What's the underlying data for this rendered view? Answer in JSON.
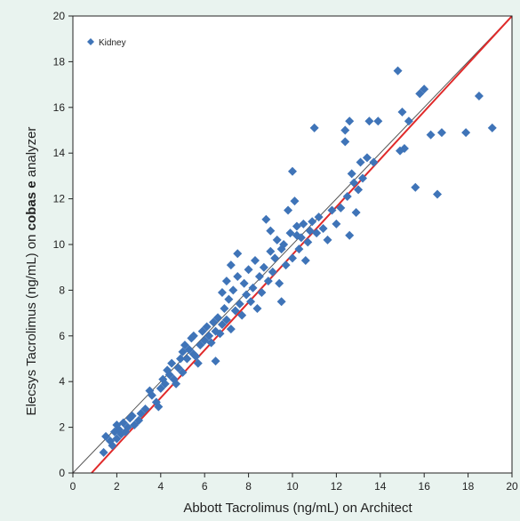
{
  "chart_data": {
    "type": "scatter",
    "xlabel": "Abbott Tacrolimus (ng/mL) on Architect",
    "ylabel_parts": [
      "Elecsys Tacrolimus (ng/mL) on ",
      "cobas e",
      " analyzer"
    ],
    "xlim": [
      0,
      20
    ],
    "ylim": [
      0,
      20
    ],
    "xticks": [
      0,
      2,
      4,
      6,
      8,
      10,
      12,
      14,
      16,
      18,
      20
    ],
    "yticks": [
      0,
      2,
      4,
      6,
      8,
      10,
      12,
      14,
      16,
      18,
      20
    ],
    "grid": false,
    "legend_position": "top-left",
    "colors": {
      "points": "#3f74b8",
      "regression_line": "#e02a2a",
      "identity_line": "#555555",
      "plot_background": "#ffffff"
    },
    "series": [
      {
        "name": "Kidney",
        "marker": "diamond",
        "points": [
          [
            1.4,
            0.9
          ],
          [
            1.5,
            1.6
          ],
          [
            1.7,
            1.4
          ],
          [
            1.8,
            1.2
          ],
          [
            1.9,
            1.8
          ],
          [
            2.0,
            1.5
          ],
          [
            2.0,
            2.1
          ],
          [
            2.1,
            1.9
          ],
          [
            2.2,
            1.7
          ],
          [
            2.3,
            2.2
          ],
          [
            2.4,
            1.8
          ],
          [
            2.5,
            2.0
          ],
          [
            2.6,
            2.4
          ],
          [
            2.7,
            2.5
          ],
          [
            2.8,
            2.1
          ],
          [
            3.0,
            2.3
          ],
          [
            3.1,
            2.6
          ],
          [
            3.3,
            2.8
          ],
          [
            3.5,
            3.6
          ],
          [
            3.6,
            3.4
          ],
          [
            3.8,
            3.1
          ],
          [
            3.9,
            2.9
          ],
          [
            4.0,
            3.7
          ],
          [
            4.1,
            4.1
          ],
          [
            4.2,
            3.9
          ],
          [
            4.3,
            4.5
          ],
          [
            4.4,
            4.3
          ],
          [
            4.5,
            4.8
          ],
          [
            4.6,
            4.1
          ],
          [
            4.7,
            3.9
          ],
          [
            4.8,
            4.6
          ],
          [
            4.9,
            5.0
          ],
          [
            5.0,
            4.4
          ],
          [
            5.0,
            5.3
          ],
          [
            5.1,
            5.6
          ],
          [
            5.2,
            5.0
          ],
          [
            5.3,
            5.4
          ],
          [
            5.4,
            5.9
          ],
          [
            5.5,
            5.2
          ],
          [
            5.5,
            6.0
          ],
          [
            5.6,
            5.1
          ],
          [
            5.7,
            4.8
          ],
          [
            5.8,
            5.6
          ],
          [
            5.9,
            6.2
          ],
          [
            6.0,
            5.8
          ],
          [
            6.1,
            6.4
          ],
          [
            6.2,
            6.0
          ],
          [
            6.3,
            5.7
          ],
          [
            6.4,
            6.6
          ],
          [
            6.5,
            4.9
          ],
          [
            6.5,
            6.2
          ],
          [
            6.6,
            6.8
          ],
          [
            6.7,
            6.1
          ],
          [
            6.8,
            6.5
          ],
          [
            6.8,
            7.9
          ],
          [
            6.9,
            7.2
          ],
          [
            7.0,
            6.7
          ],
          [
            7.0,
            8.4
          ],
          [
            7.1,
            7.6
          ],
          [
            7.2,
            6.3
          ],
          [
            7.2,
            9.1
          ],
          [
            7.3,
            8.0
          ],
          [
            7.4,
            7.1
          ],
          [
            7.5,
            8.6
          ],
          [
            7.5,
            9.6
          ],
          [
            7.6,
            7.4
          ],
          [
            7.7,
            6.9
          ],
          [
            7.8,
            8.3
          ],
          [
            7.9,
            7.8
          ],
          [
            8.0,
            8.9
          ],
          [
            8.1,
            7.5
          ],
          [
            8.2,
            8.1
          ],
          [
            8.3,
            9.3
          ],
          [
            8.4,
            7.2
          ],
          [
            8.5,
            8.6
          ],
          [
            8.6,
            7.9
          ],
          [
            8.7,
            9.0
          ],
          [
            8.8,
            11.1
          ],
          [
            8.9,
            8.4
          ],
          [
            9.0,
            9.7
          ],
          [
            9.0,
            10.6
          ],
          [
            9.1,
            8.8
          ],
          [
            9.2,
            9.4
          ],
          [
            9.3,
            10.2
          ],
          [
            9.4,
            8.3
          ],
          [
            9.5,
            9.8
          ],
          [
            9.5,
            7.5
          ],
          [
            9.6,
            10.0
          ],
          [
            9.7,
            9.1
          ],
          [
            9.8,
            11.5
          ],
          [
            9.9,
            10.5
          ],
          [
            10.0,
            9.4
          ],
          [
            10.0,
            13.2
          ],
          [
            10.1,
            11.9
          ],
          [
            10.2,
            10.8
          ],
          [
            10.3,
            9.8
          ],
          [
            10.4,
            10.3
          ],
          [
            10.5,
            10.9
          ],
          [
            10.6,
            9.3
          ],
          [
            10.7,
            10.1
          ],
          [
            10.8,
            10.6
          ],
          [
            10.9,
            11.0
          ],
          [
            11.0,
            15.1
          ],
          [
            11.1,
            10.5
          ],
          [
            11.2,
            11.2
          ],
          [
            11.4,
            10.7
          ],
          [
            11.6,
            10.2
          ],
          [
            11.8,
            11.5
          ],
          [
            12.0,
            10.9
          ],
          [
            12.2,
            11.6
          ],
          [
            12.4,
            14.5
          ],
          [
            12.4,
            15.0
          ],
          [
            12.5,
            12.1
          ],
          [
            12.6,
            10.4
          ],
          [
            12.7,
            13.1
          ],
          [
            12.8,
            12.7
          ],
          [
            12.9,
            11.4
          ],
          [
            13.0,
            12.4
          ],
          [
            13.1,
            13.6
          ],
          [
            13.2,
            12.9
          ],
          [
            13.4,
            13.8
          ],
          [
            13.5,
            15.4
          ],
          [
            13.7,
            13.6
          ],
          [
            14.8,
            17.6
          ],
          [
            14.9,
            14.1
          ],
          [
            15.0,
            15.8
          ],
          [
            15.1,
            14.2
          ],
          [
            15.3,
            15.4
          ],
          [
            15.6,
            12.5
          ],
          [
            15.8,
            16.6
          ],
          [
            16.0,
            16.8
          ],
          [
            16.3,
            14.8
          ],
          [
            16.6,
            12.2
          ],
          [
            16.8,
            14.9
          ],
          [
            17.9,
            14.9
          ],
          [
            18.5,
            16.5
          ],
          [
            19.1,
            15.1
          ],
          [
            12.6,
            15.4
          ],
          [
            13.9,
            15.4
          ],
          [
            10.2,
            10.4
          ]
        ]
      }
    ],
    "lines": [
      {
        "name": "identity",
        "from": [
          0,
          0
        ],
        "to": [
          20,
          20
        ]
      },
      {
        "name": "regression",
        "from": [
          0.85,
          0
        ],
        "to": [
          20,
          20
        ]
      }
    ]
  }
}
